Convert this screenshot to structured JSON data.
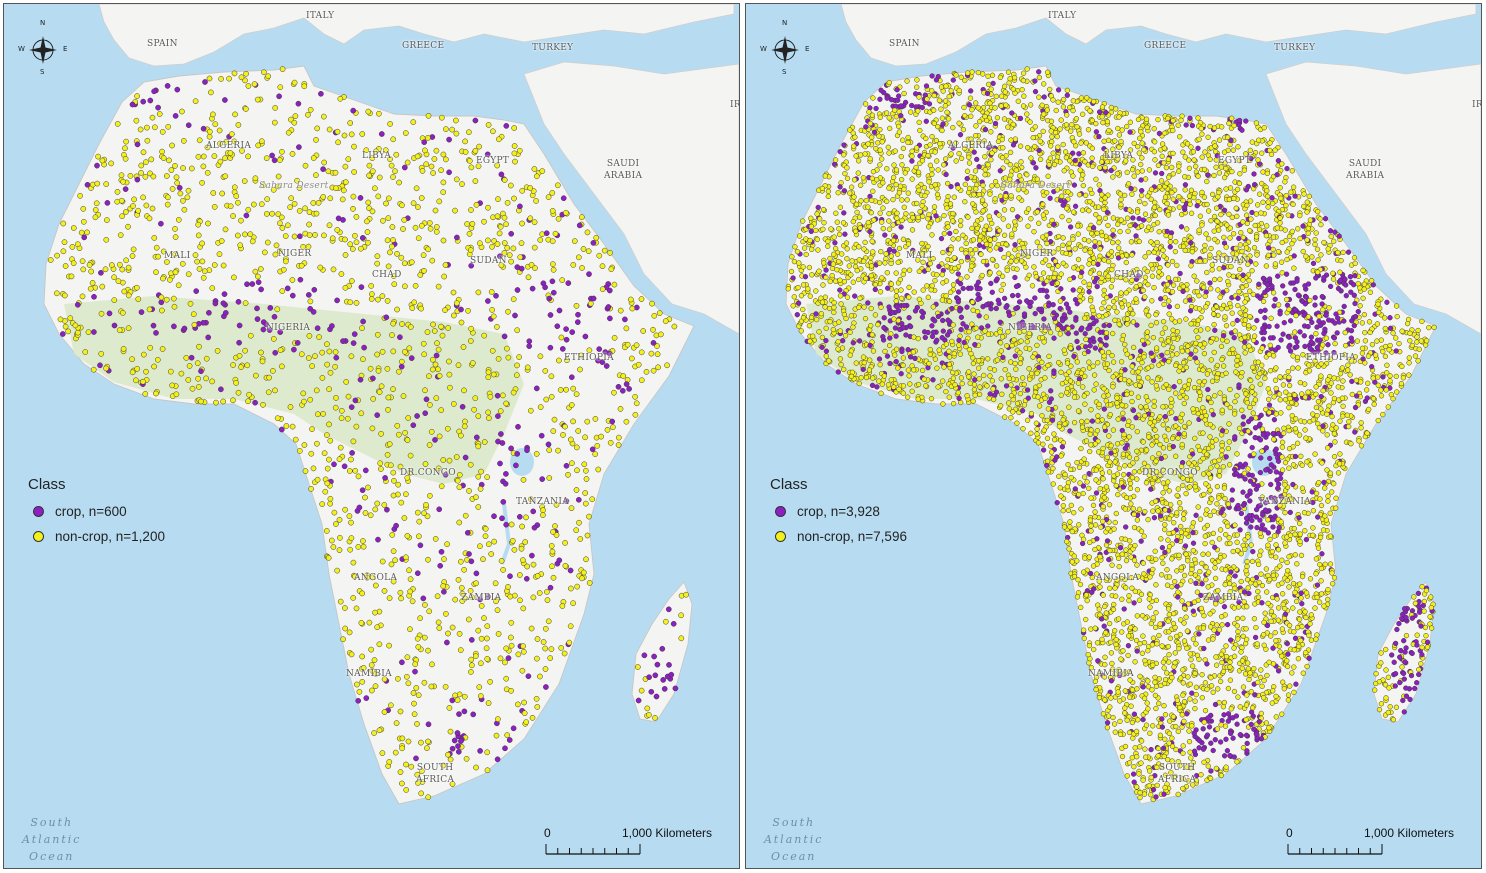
{
  "colors": {
    "ocean": "#b7dcf2",
    "land": "#f4f4f2",
    "vegetation": "#d9e8c8",
    "crop": "#8e1fc2",
    "non_crop": "#f3f01c",
    "point_outline": "#3a3a3a"
  },
  "icons": [
    "compass-rose-icon"
  ],
  "compass": {
    "n": "N",
    "s": "S",
    "e": "E",
    "w": "W"
  },
  "labels": {
    "italy": "ITALY",
    "spain": "SPAIN",
    "greece": "GREECE",
    "turkey": "TURKEY",
    "ir": "IR",
    "saudi": "SAUDI\nARABIA",
    "algeria": "ALGERIA",
    "libya": "LIBYA",
    "egypt": "EGYPT",
    "sahara": "Sahara Desert",
    "mali": "MALI",
    "niger": "NIGER",
    "chad": "CHAD",
    "sudan": "SUDAN",
    "nigeria": "NIGERIA",
    "ethiopia": "ETHIOPIA",
    "drcongo": "DR.CONGO",
    "tanzania": "TANZANIA",
    "angola": "ANGOLA",
    "zambia": "ZAMBIA",
    "namibia": "NAMIBIA",
    "south_africa": "SOUTH\nAFRICA",
    "ocean": "South\nAtlantic\nOcean"
  },
  "scale": {
    "zero": "0",
    "distance": "1,000 Kilometers"
  },
  "panels": [
    {
      "legend": {
        "title": "Class",
        "crop_label": "crop, n=600",
        "noncrop_label": "non-crop, n=1,200"
      },
      "point_counts": {
        "crop": 600,
        "non_crop": 1200
      }
    },
    {
      "legend": {
        "title": "Class",
        "crop_label": "crop, n=3,928",
        "noncrop_label": "non-crop, n=7,596"
      },
      "point_counts": {
        "crop": 3928,
        "non_crop": 7596
      }
    }
  ]
}
